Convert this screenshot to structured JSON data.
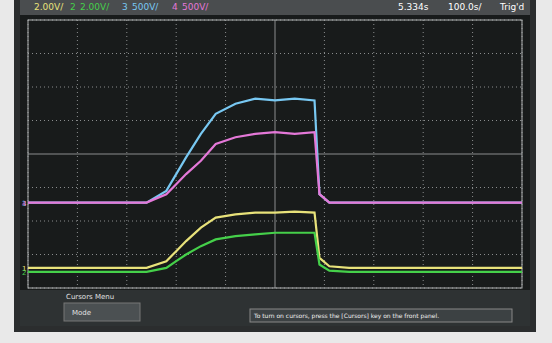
{
  "chart_data": {
    "type": "line",
    "annotations": [
      "2.00V/",
      "2",
      "2.00V/",
      "3",
      "500V/",
      "4",
      "500V/",
      "5.334s",
      "100.0s/",
      "Trig'd",
      "Cursors Menu",
      "Mode",
      "To turn on cursors, press the [Cursors] key on the front panel."
    ],
    "x": [
      0,
      1,
      2,
      2.4,
      2.8,
      3.0,
      3.2,
      3.5,
      3.8,
      4.2,
      4.6,
      5.0,
      5.4,
      5.8,
      5.9,
      6.1,
      6.5,
      7,
      8,
      9,
      10
    ],
    "series": [
      {
        "name": "1",
        "color": "#e8e27a",
        "values": [
          -3.4,
          -3.4,
          -3.4,
          -3.4,
          -3.2,
          -2.9,
          -2.6,
          -2.2,
          -1.9,
          -1.8,
          -1.75,
          -1.75,
          -1.72,
          -1.75,
          -3.1,
          -3.35,
          -3.4,
          -3.4,
          -3.4,
          -3.4,
          -3.4
        ]
      },
      {
        "name": "2",
        "color": "#45d04a",
        "values": [
          -3.52,
          -3.52,
          -3.52,
          -3.52,
          -3.4,
          -3.2,
          -3.0,
          -2.75,
          -2.55,
          -2.45,
          -2.4,
          -2.35,
          -2.35,
          -2.35,
          -3.3,
          -3.48,
          -3.52,
          -3.52,
          -3.52,
          -3.52,
          -3.52
        ]
      },
      {
        "name": "3",
        "color": "#78c8f2",
        "values": [
          -1.45,
          -1.45,
          -1.45,
          -1.45,
          -1.1,
          -0.6,
          -0.1,
          0.6,
          1.2,
          1.5,
          1.65,
          1.6,
          1.65,
          1.6,
          -1.2,
          -1.45,
          -1.45,
          -1.45,
          -1.45,
          -1.45,
          -1.45
        ]
      },
      {
        "name": "4",
        "color": "#e478d8",
        "values": [
          -1.45,
          -1.45,
          -1.45,
          -1.45,
          -1.2,
          -0.9,
          -0.6,
          -0.2,
          0.3,
          0.5,
          0.6,
          0.65,
          0.6,
          0.65,
          -1.2,
          -1.45,
          -1.45,
          -1.45,
          -1.45,
          -1.45,
          -1.45
        ]
      }
    ],
    "xlim": [
      0,
      10
    ],
    "xticks": [
      0,
      1,
      2,
      3,
      4,
      5,
      6,
      7,
      8,
      9,
      10
    ],
    "ylim": [
      -4,
      4
    ],
    "yticks": [
      -4,
      -3,
      -2,
      -1,
      0,
      1,
      2,
      3,
      4
    ],
    "grid": true,
    "tick_labels": false
  }
}
